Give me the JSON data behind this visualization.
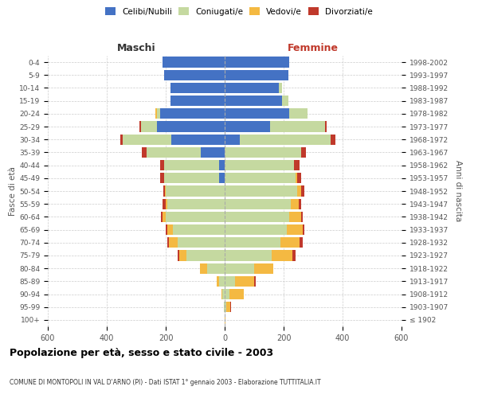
{
  "age_groups": [
    "100+",
    "95-99",
    "90-94",
    "85-89",
    "80-84",
    "75-79",
    "70-74",
    "65-69",
    "60-64",
    "55-59",
    "50-54",
    "45-49",
    "40-44",
    "35-39",
    "30-34",
    "25-29",
    "20-24",
    "15-19",
    "10-14",
    "5-9",
    "0-4"
  ],
  "birth_years": [
    "≤ 1902",
    "1903-1907",
    "1908-1912",
    "1913-1917",
    "1918-1922",
    "1923-1927",
    "1928-1932",
    "1933-1937",
    "1938-1942",
    "1943-1947",
    "1948-1952",
    "1953-1957",
    "1958-1962",
    "1963-1967",
    "1968-1972",
    "1973-1977",
    "1978-1982",
    "1983-1987",
    "1988-1992",
    "1993-1997",
    "1998-2002"
  ],
  "maschi": {
    "celibi": [
      0,
      0,
      0,
      0,
      0,
      0,
      0,
      0,
      0,
      0,
      0,
      20,
      20,
      80,
      180,
      230,
      220,
      185,
      185,
      205,
      210
    ],
    "coniugati": [
      0,
      2,
      8,
      20,
      60,
      130,
      160,
      175,
      200,
      195,
      200,
      185,
      185,
      185,
      165,
      55,
      10,
      0,
      0,
      0,
      0
    ],
    "vedovi": [
      0,
      0,
      2,
      8,
      25,
      25,
      30,
      20,
      10,
      5,
      3,
      0,
      0,
      0,
      0,
      0,
      5,
      0,
      0,
      0,
      0
    ],
    "divorziati": [
      0,
      0,
      0,
      0,
      0,
      5,
      5,
      5,
      5,
      10,
      5,
      15,
      15,
      15,
      10,
      5,
      0,
      0,
      0,
      0,
      0
    ]
  },
  "femmine": {
    "nubili": [
      0,
      0,
      0,
      0,
      0,
      0,
      0,
      0,
      0,
      0,
      0,
      0,
      0,
      0,
      50,
      155,
      220,
      195,
      185,
      215,
      220
    ],
    "coniugate": [
      0,
      5,
      15,
      35,
      100,
      160,
      190,
      210,
      220,
      225,
      245,
      240,
      235,
      260,
      310,
      185,
      60,
      20,
      10,
      0,
      0
    ],
    "vedove": [
      2,
      15,
      50,
      65,
      65,
      70,
      65,
      55,
      40,
      25,
      15,
      5,
      0,
      0,
      0,
      0,
      0,
      0,
      0,
      0,
      0
    ],
    "divorziate": [
      0,
      2,
      0,
      5,
      0,
      10,
      10,
      5,
      5,
      10,
      10,
      15,
      20,
      15,
      15,
      5,
      0,
      0,
      0,
      0,
      0
    ]
  },
  "colors": {
    "celibi_nubili": "#4472c4",
    "coniugati": "#c5d9a0",
    "vedovi": "#f4b942",
    "divorziati": "#c0392b"
  },
  "xlim": 600,
  "title": "Popolazione per età, sesso e stato civile - 2003",
  "subtitle": "COMUNE DI MONTOPOLI IN VAL D'ARNO (PI) - Dati ISTAT 1° gennaio 2003 - Elaborazione TUTTITALIA.IT",
  "ylabel_left": "Fasce di età",
  "ylabel_right": "Anni di nascita",
  "xlabel_left": "Maschi",
  "xlabel_right": "Femmine"
}
